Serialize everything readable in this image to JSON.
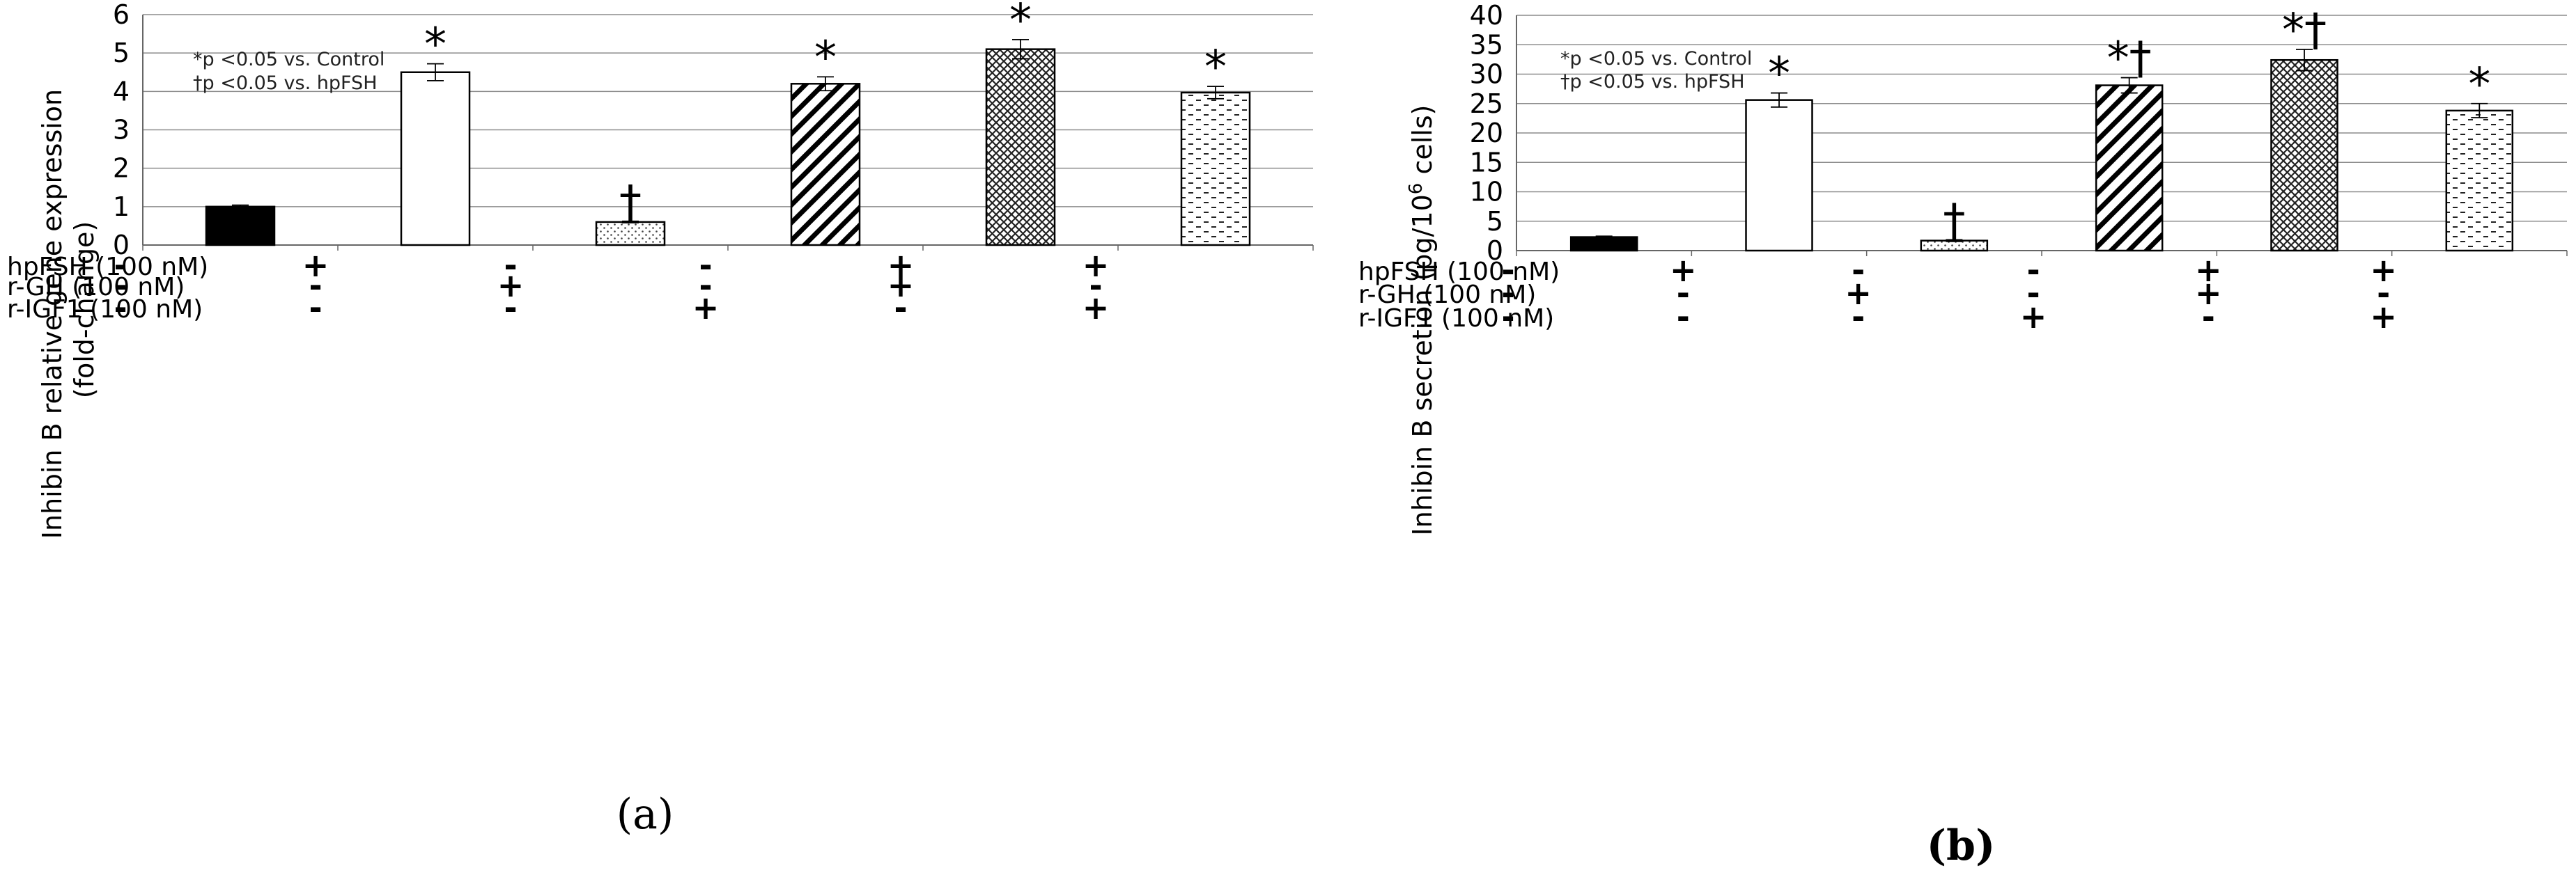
{
  "chart_data": [
    {
      "type": "bar",
      "panel_label": "(a)",
      "ylabel_line1": "Inhibin B relative gene expression",
      "ylabel_line2": "(fold-change)",
      "ylim": [
        0,
        6
      ],
      "yticks": [
        "0",
        "1",
        "2",
        "3",
        "4",
        "5",
        "6"
      ],
      "grid": true,
      "notes": [
        "*p <0.05 vs. Control",
        "†p <0.05 vs. hpFSH"
      ],
      "values": [
        1.0,
        4.5,
        0.6,
        4.2,
        5.1,
        3.97
      ],
      "errors": [
        0.04,
        0.22,
        0.02,
        0.18,
        0.25,
        0.16
      ],
      "patterns": [
        "solid",
        "white",
        "dots",
        "diagonal",
        "crosshatch",
        "dashes"
      ],
      "significance": [
        "",
        "*",
        "†",
        "*",
        "*",
        "*"
      ],
      "conditions": [
        {
          "label": "hpFSH (100 nM)",
          "signs": [
            "-",
            "+",
            "-",
            "-",
            "+",
            "+"
          ]
        },
        {
          "label": "r-GH (100 nM)",
          "signs": [
            "-",
            "-",
            "+",
            "-",
            "+",
            "-"
          ]
        },
        {
          "label": "r-IGF1 (100 nM)",
          "signs": [
            "-",
            "-",
            "-",
            "+",
            "-",
            "+"
          ]
        }
      ]
    },
    {
      "type": "bar",
      "panel_label": "(b)",
      "ylabel_pre": "Inhibin B secretion (pg/10",
      "ylabel_sup": "6",
      "ylabel_post": " cells)",
      "ylim": [
        0,
        40
      ],
      "yticks": [
        "0",
        "5",
        "10",
        "15",
        "20",
        "25",
        "30",
        "35",
        "40"
      ],
      "grid": true,
      "notes": [
        "*p <0.05 vs. Control",
        "†p <0.05 vs. hpFSH"
      ],
      "values": [
        2.3,
        25.6,
        1.7,
        28.1,
        32.4,
        23.8
      ],
      "errors": [
        0.15,
        1.2,
        0.15,
        1.3,
        1.8,
        1.2
      ],
      "patterns": [
        "solid",
        "white",
        "dots",
        "diagonal",
        "crosshatch",
        "dashes"
      ],
      "significance": [
        "",
        "*",
        "†",
        "*†",
        "*†",
        "*"
      ],
      "conditions": [
        {
          "label": "hpFSH (100 nM)",
          "signs": [
            "-",
            "+",
            "-",
            "-",
            "+",
            "+"
          ]
        },
        {
          "label": "r-GH (100 nM)",
          "signs": [
            "-",
            "-",
            "+",
            "-",
            "+",
            "-"
          ]
        },
        {
          "label": "r-IGF1 (100 nM)",
          "signs": [
            "-",
            "-",
            "-",
            "+",
            "-",
            "+"
          ]
        }
      ]
    }
  ]
}
